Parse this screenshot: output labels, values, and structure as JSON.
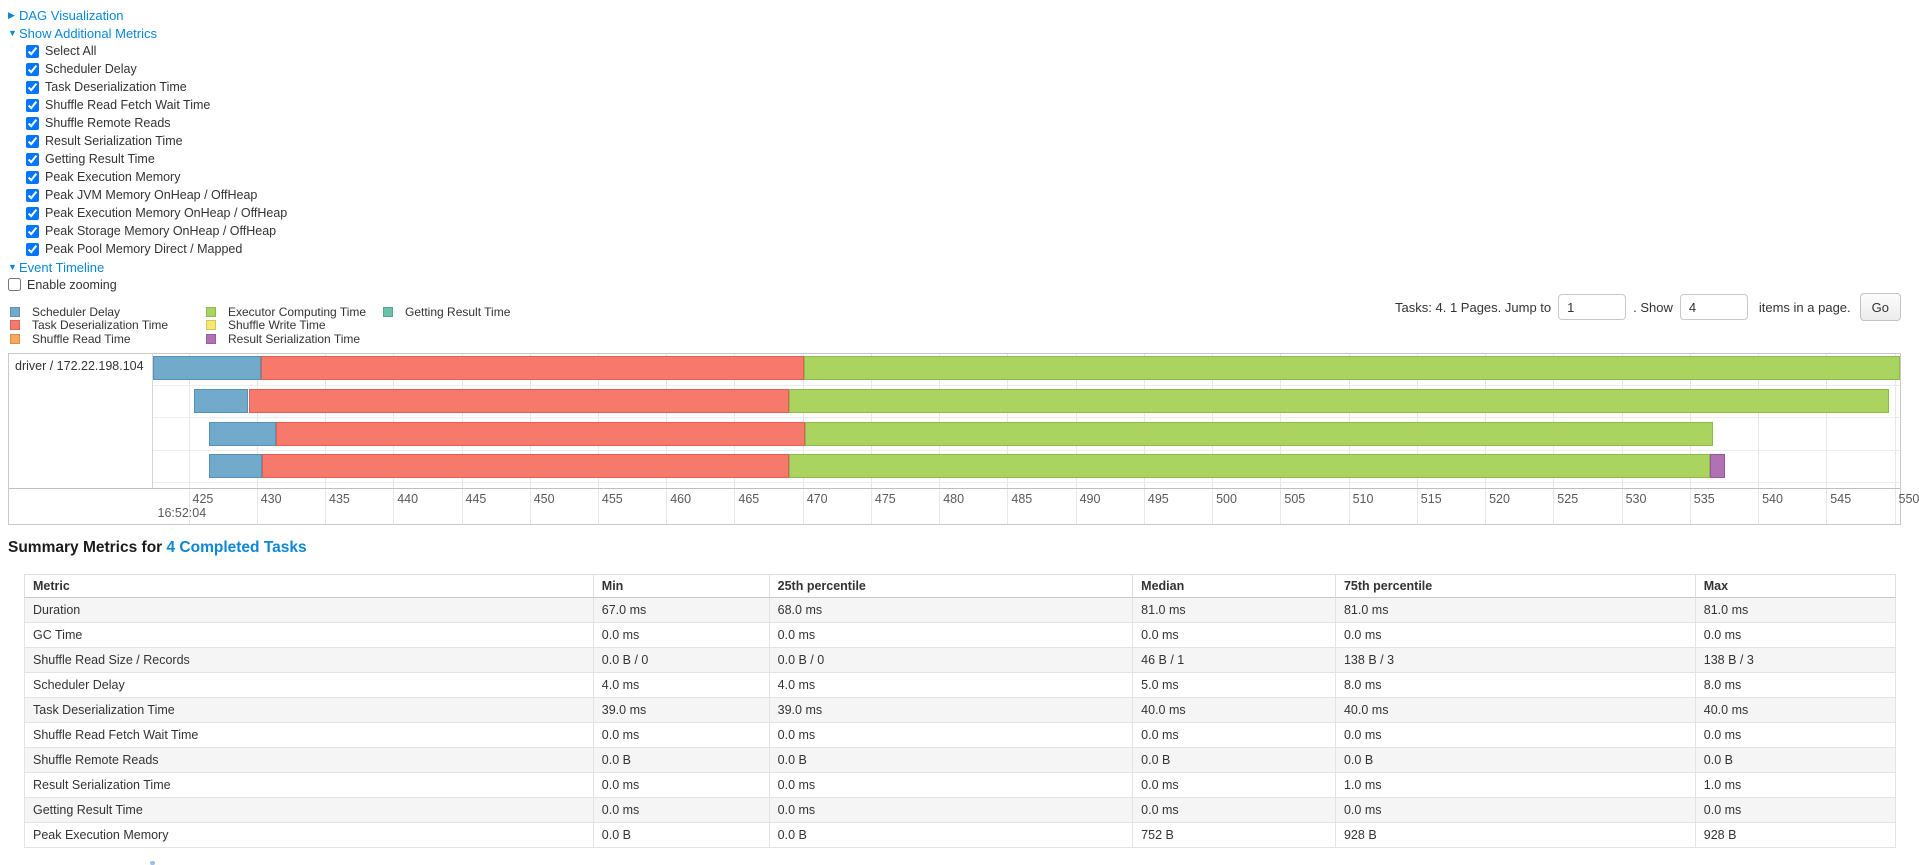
{
  "links": {
    "dag": "DAG Visualization",
    "additional_metrics": "Show Additional Metrics",
    "event_timeline": "Event Timeline"
  },
  "metrics_checkboxes": [
    "Select All",
    "Scheduler Delay",
    "Task Deserialization Time",
    "Shuffle Read Fetch Wait Time",
    "Shuffle Remote Reads",
    "Result Serialization Time",
    "Getting Result Time",
    "Peak Execution Memory",
    "Peak JVM Memory OnHeap / OffHeap",
    "Peak Execution Memory OnHeap / OffHeap",
    "Peak Storage Memory OnHeap / OffHeap",
    "Peak Pool Memory Direct / Mapped"
  ],
  "enable_zooming_label": "Enable zooming",
  "pagination": {
    "prefix": "Tasks: 4. 1 Pages. Jump to",
    "jump_value": "1",
    "mid": ". Show",
    "show_value": "4",
    "suffix": "items in a page.",
    "go_label": "Go"
  },
  "chart_data": {
    "type": "gantt",
    "title": "Event Timeline",
    "group_label": "driver / 172.22.198.104",
    "x_axis": {
      "min": 422.4,
      "max": 550.4,
      "tick_start": 425,
      "tick_end": 550,
      "tick_step": 5,
      "time_label": "16:52:04",
      "grid": true
    },
    "colors": {
      "scheduler_delay": {
        "fill": "#72aacc",
        "border": "#5590b6"
      },
      "task_deserialization": {
        "fill": "#f6796c",
        "border": "#e05f55"
      },
      "shuffle_read": {
        "fill": "#f8a95b",
        "border": "#e08f42"
      },
      "executor_computing": {
        "fill": "#abd35f",
        "border": "#8fb948"
      },
      "shuffle_write": {
        "fill": "#f5e871",
        "border": "#dcce55"
      },
      "result_serialization": {
        "fill": "#b171b5",
        "border": "#96589b"
      },
      "getting_result": {
        "fill": "#68c2a9",
        "border": "#4da88f"
      }
    },
    "legend": [
      {
        "label": "Scheduler Delay",
        "key": "scheduler_delay",
        "col": 0
      },
      {
        "label": "Task Deserialization Time",
        "key": "task_deserialization",
        "col": 0
      },
      {
        "label": "Shuffle Read Time",
        "key": "shuffle_read",
        "col": 0
      },
      {
        "label": "Executor Computing Time",
        "key": "executor_computing",
        "col": 1
      },
      {
        "label": "Shuffle Write Time",
        "key": "shuffle_write",
        "col": 1
      },
      {
        "label": "Result Serialization Time",
        "key": "result_serialization",
        "col": 1
      },
      {
        "label": "Getting Result Time",
        "key": "getting_result",
        "col": 2
      }
    ],
    "tasks": [
      {
        "segments": [
          {
            "key": "scheduler_delay",
            "start": 422.4,
            "end": 430.3
          },
          {
            "key": "task_deserialization",
            "start": 430.3,
            "end": 470.1
          },
          {
            "key": "executor_computing",
            "start": 470.1,
            "end": 550.4
          }
        ]
      },
      {
        "segments": [
          {
            "key": "scheduler_delay",
            "start": 425.4,
            "end": 429.4
          },
          {
            "key": "task_deserialization",
            "start": 429.4,
            "end": 469.0
          },
          {
            "key": "executor_computing",
            "start": 469.0,
            "end": 549.6
          }
        ]
      },
      {
        "segments": [
          {
            "key": "scheduler_delay",
            "start": 426.5,
            "end": 431.4
          },
          {
            "key": "task_deserialization",
            "start": 431.4,
            "end": 470.2
          },
          {
            "key": "executor_computing",
            "start": 470.2,
            "end": 536.7
          }
        ]
      },
      {
        "segments": [
          {
            "key": "scheduler_delay",
            "start": 426.5,
            "end": 430.4
          },
          {
            "key": "task_deserialization",
            "start": 430.4,
            "end": 469.0
          },
          {
            "key": "executor_computing",
            "start": 469.0,
            "end": 536.5
          },
          {
            "key": "result_serialization",
            "start": 536.5,
            "end": 537.6
          }
        ]
      }
    ]
  },
  "summary": {
    "title_prefix": "Summary Metrics for ",
    "title_link": "4 Completed Tasks"
  },
  "table": {
    "headers": [
      "Metric",
      "Min",
      "25th percentile",
      "Median",
      "75th percentile",
      "Max"
    ],
    "col_widths_pct": [
      30.4,
      9.4,
      19.43,
      10.84,
      19.23,
      10.7
    ],
    "rows": [
      {
        "metric": "Duration",
        "values": [
          "67.0 ms",
          "68.0 ms",
          "81.0 ms",
          "81.0 ms",
          "81.0 ms"
        ]
      },
      {
        "metric": "GC Time",
        "values": [
          "0.0 ms",
          "0.0 ms",
          "0.0 ms",
          "0.0 ms",
          "0.0 ms"
        ]
      },
      {
        "metric": "Shuffle Read Size / Records",
        "values": [
          "0.0 B / 0",
          "0.0 B / 0",
          "46 B / 1",
          "138 B / 3",
          "138 B / 3"
        ]
      },
      {
        "metric": "Scheduler Delay",
        "values": [
          "4.0 ms",
          "4.0 ms",
          "5.0 ms",
          "8.0 ms",
          "8.0 ms"
        ]
      },
      {
        "metric": "Task Deserialization Time",
        "values": [
          "39.0 ms",
          "39.0 ms",
          "40.0 ms",
          "40.0 ms",
          "40.0 ms"
        ]
      },
      {
        "metric": "Shuffle Read Fetch Wait Time",
        "values": [
          "0.0 ms",
          "0.0 ms",
          "0.0 ms",
          "0.0 ms",
          "0.0 ms"
        ]
      },
      {
        "metric": "Shuffle Remote Reads",
        "values": [
          "0.0 B",
          "0.0 B",
          "0.0 B",
          "0.0 B",
          "0.0 B"
        ]
      },
      {
        "metric": "Result Serialization Time",
        "values": [
          "0.0 ms",
          "0.0 ms",
          "0.0 ms",
          "1.0 ms",
          "1.0 ms"
        ]
      },
      {
        "metric": "Getting Result Time",
        "values": [
          "0.0 ms",
          "0.0 ms",
          "0.0 ms",
          "0.0 ms",
          "0.0 ms"
        ]
      },
      {
        "metric": "Peak Execution Memory",
        "values": [
          "0.0 B",
          "0.0 B",
          "752 B",
          "928 B",
          "928 B"
        ]
      }
    ]
  }
}
